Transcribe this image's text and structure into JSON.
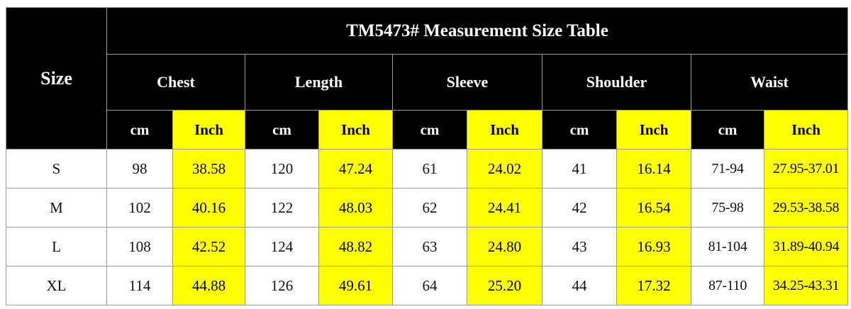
{
  "table": {
    "title": "TM5473# Measurement Size Table",
    "size_header": "Size",
    "groups": [
      {
        "name": "Chest",
        "units": [
          "cm",
          "Inch"
        ]
      },
      {
        "name": "Length",
        "units": [
          "cm",
          "Inch"
        ]
      },
      {
        "name": "Sleeve",
        "units": [
          "cm",
          "Inch"
        ]
      },
      {
        "name": "Shoulder",
        "units": [
          "cm",
          "Inch"
        ]
      },
      {
        "name": "Waist",
        "units": [
          "cm",
          "Inch"
        ]
      }
    ],
    "rows": [
      {
        "size": "S",
        "values": [
          "98",
          "38.58",
          "120",
          "47.24",
          "61",
          "24.02",
          "41",
          "16.14",
          "71-94",
          "27.95-37.01"
        ]
      },
      {
        "size": "M",
        "values": [
          "102",
          "40.16",
          "122",
          "48.03",
          "62",
          "24.41",
          "42",
          "16.54",
          "75-98",
          "29.53-38.58"
        ]
      },
      {
        "size": "L",
        "values": [
          "108",
          "42.52",
          "124",
          "48.82",
          "63",
          "24.80",
          "43",
          "16.93",
          "81-104",
          "31.89-40.94"
        ]
      },
      {
        "size": "XL",
        "values": [
          "114",
          "44.88",
          "126",
          "49.61",
          "64",
          "25.20",
          "44",
          "17.32",
          "87-110",
          "34.25-43.31"
        ]
      }
    ]
  }
}
